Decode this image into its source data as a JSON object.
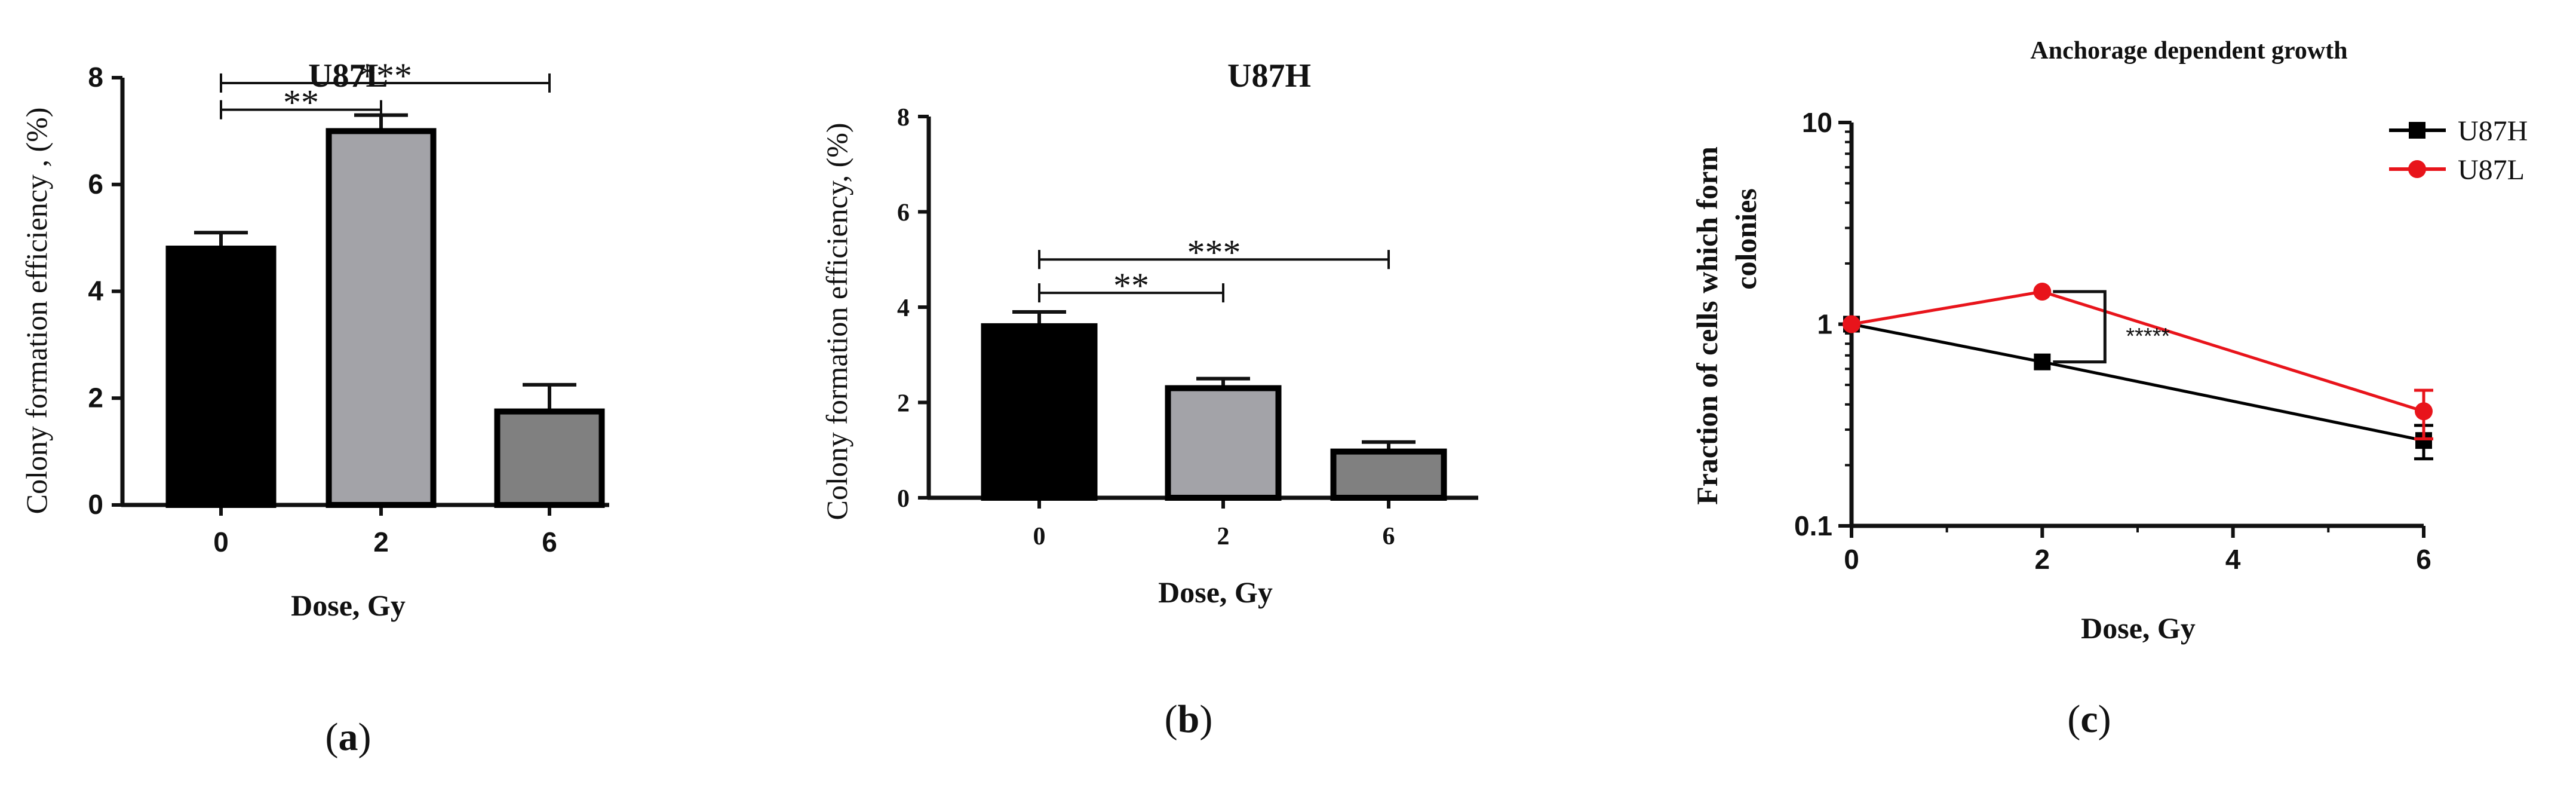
{
  "panels": [
    {
      "label": "(a)",
      "letter": "a"
    },
    {
      "label": "(b)",
      "letter": "b"
    },
    {
      "label": "(c)",
      "letter": "c"
    }
  ],
  "chart_data": [
    {
      "type": "bar",
      "title": "U87L",
      "xlabel": "Dose, Gy",
      "ylabel": "Colony formation efficiency , (%)",
      "categories": [
        "0",
        "2",
        "6"
      ],
      "values": [
        4.8,
        7.0,
        1.75
      ],
      "errors": [
        0.3,
        0.3,
        0.5
      ],
      "bar_colors": [
        "#000000",
        "#a3a3a8",
        "#808080"
      ],
      "ylim": [
        0,
        8
      ],
      "yticks": [
        "0",
        "2",
        "4",
        "6",
        "8"
      ],
      "significance": [
        {
          "from": 0,
          "to": 1,
          "label": "**",
          "y": 7.4
        },
        {
          "from": 0,
          "to": 2,
          "label": "***",
          "y": 7.9
        }
      ],
      "grid": false
    },
    {
      "type": "bar",
      "title": "U87H",
      "xlabel": "Dose, Gy",
      "ylabel": "Colony formation efficiency, (%)",
      "categories": [
        "0",
        "2",
        "6"
      ],
      "values": [
        3.6,
        2.3,
        0.97
      ],
      "errors": [
        0.3,
        0.2,
        0.2
      ],
      "bar_colors": [
        "#000000",
        "#a3a3a8",
        "#808080"
      ],
      "ylim": [
        0,
        8
      ],
      "yticks": [
        "0",
        "2",
        "4",
        "6",
        "8"
      ],
      "significance": [
        {
          "from": 0,
          "to": 1,
          "label": "**",
          "y": 4.3
        },
        {
          "from": 0,
          "to": 2,
          "label": "***",
          "y": 5.0
        }
      ],
      "grid": false
    },
    {
      "type": "line",
      "title": "Anchorage dependent growth",
      "xlabel": "Dose, Gy",
      "ylabel_lines": [
        "Fraction  of cells which form",
        "colonies"
      ],
      "yscale": "log",
      "xlim": [
        0,
        6
      ],
      "ylim": [
        0.1,
        10
      ],
      "xticks": [
        "0",
        "2",
        "4",
        "6"
      ],
      "yticks": [
        "0.1",
        "1",
        "10"
      ],
      "series": [
        {
          "name": "U87H",
          "color": "#000000",
          "marker": "square",
          "x": [
            0,
            2,
            6
          ],
          "y": [
            1.0,
            0.65,
            0.265
          ],
          "errors": [
            0,
            0,
            0.05
          ]
        },
        {
          "name": "U87L",
          "color": "#e8141b",
          "marker": "circle",
          "x": [
            0,
            2,
            6
          ],
          "y": [
            1.0,
            1.45,
            0.37
          ],
          "errors": [
            0,
            0,
            0.1
          ]
        }
      ],
      "annotation": {
        "label": "*****",
        "x": 2,
        "y_low": 0.65,
        "y_high": 1.45
      },
      "legend": "top-right",
      "grid": false
    }
  ]
}
